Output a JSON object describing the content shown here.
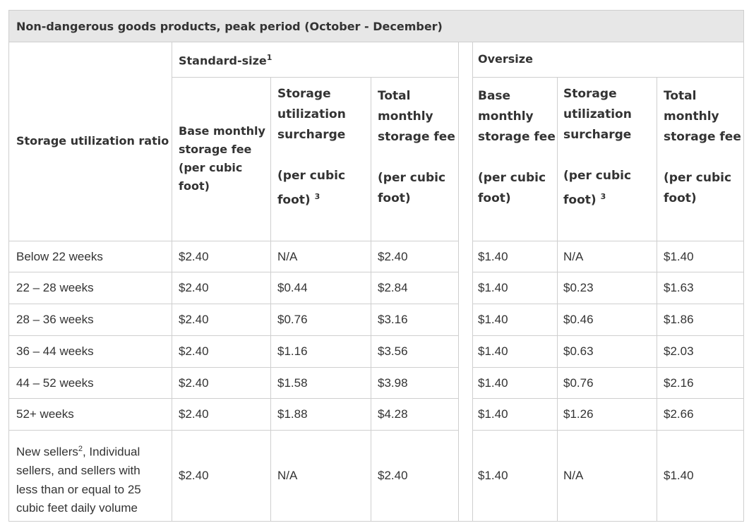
{
  "table": {
    "title": "Non-dangerous goods products, peak period (October - December)",
    "row_header_label": "Storage utilization ratio",
    "groups": {
      "standard": {
        "label": "Standard-size",
        "footnote": "1"
      },
      "oversize": {
        "label": "Oversize"
      }
    },
    "columns": {
      "base": {
        "line1": "Base monthly",
        "line2": "storage fee",
        "line3": "(per cubic",
        "line4": "foot)"
      },
      "surcharge": {
        "line1": "Storage",
        "line2": "utilization",
        "line3": "surcharge",
        "line4": "(per cubic",
        "line5": "foot)",
        "footnote": "3"
      },
      "total": {
        "line1": "Total",
        "line2": "monthly",
        "line3": "storage fee",
        "line4": "(per cubic",
        "line5": "foot)"
      },
      "over_base": {
        "line1": "Base",
        "line2": "monthly",
        "line3": "storage fee",
        "line4": "(per cubic",
        "line5": "foot)"
      }
    },
    "rows": [
      {
        "label": "Below 22 weeks",
        "values": [
          "$2.40",
          "N/A",
          "$2.40",
          "$1.40",
          "N/A",
          "$1.40"
        ]
      },
      {
        "label": "22 – 28 weeks",
        "values": [
          "$2.40",
          "$0.44",
          "$2.84",
          "$1.40",
          "$0.23",
          "$1.63"
        ]
      },
      {
        "label": "28 – 36 weeks",
        "values": [
          "$2.40",
          "$0.76",
          "$3.16",
          "$1.40",
          "$0.46",
          "$1.86"
        ]
      },
      {
        "label": "36 – 44 weeks",
        "values": [
          "$2.40",
          "$1.16",
          "$3.56",
          "$1.40",
          "$0.63",
          "$2.03"
        ]
      },
      {
        "label": "44 – 52 weeks",
        "values": [
          "$2.40",
          "$1.58",
          "$3.98",
          "$1.40",
          "$0.76",
          "$2.16"
        ]
      },
      {
        "label": "52+ weeks",
        "values": [
          "$2.40",
          "$1.88",
          "$4.28",
          "$1.40",
          "$1.26",
          "$2.66"
        ]
      }
    ],
    "last_row": {
      "label_line1_pre": "New sellers",
      "label_footnote": "2",
      "label_line1_post": ", Individual",
      "label_line2": "sellers, and sellers with",
      "label_line3": "less than or equal to 25",
      "label_line4": "cubic feet daily volume",
      "values": [
        "$2.40",
        "N/A",
        "$2.40",
        "$1.40",
        "N/A",
        "$1.40"
      ]
    }
  }
}
